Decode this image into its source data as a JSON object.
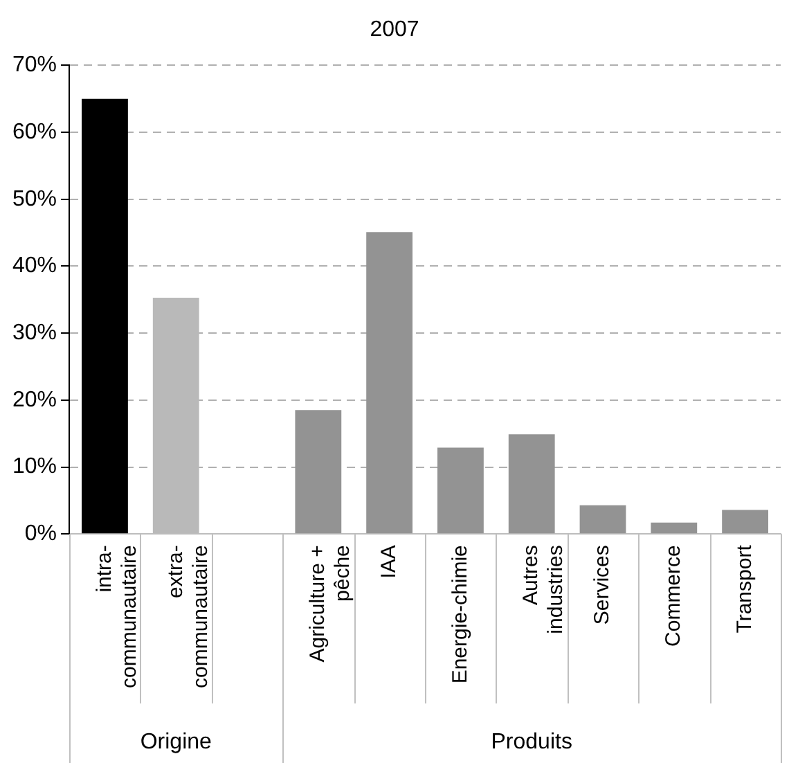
{
  "chart_data": {
    "type": "bar",
    "title": "2007",
    "categories": [
      "intra-communautaire",
      "extra-communautaire",
      null,
      "Agriculture + pêche",
      "IAA",
      "Energie-chimie",
      "Autres industries",
      "Services",
      "Commerce",
      "Transport"
    ],
    "values": [
      65,
      35.3,
      null,
      18.5,
      45.1,
      12.9,
      14.9,
      4.3,
      1.7,
      3.6
    ],
    "colors": [
      "#000000",
      "#b9b9b9",
      "#939393",
      "#939393",
      "#939393",
      "#939393",
      "#939393",
      "#939393",
      "#939393",
      "#939393"
    ],
    "ylim": [
      0,
      70
    ],
    "yticks": [
      {
        "value": 0,
        "label": "0%"
      },
      {
        "value": 10,
        "label": "10%"
      },
      {
        "value": 20,
        "label": "20%"
      },
      {
        "value": 30,
        "label": "30%"
      },
      {
        "value": 40,
        "label": "40%"
      },
      {
        "value": 50,
        "label": "50%"
      },
      {
        "value": 60,
        "label": "60%"
      },
      {
        "value": 70,
        "label": "70%"
      }
    ],
    "grid": "y",
    "legend": false,
    "annotations": [
      "Origine",
      "Produits"
    ]
  }
}
